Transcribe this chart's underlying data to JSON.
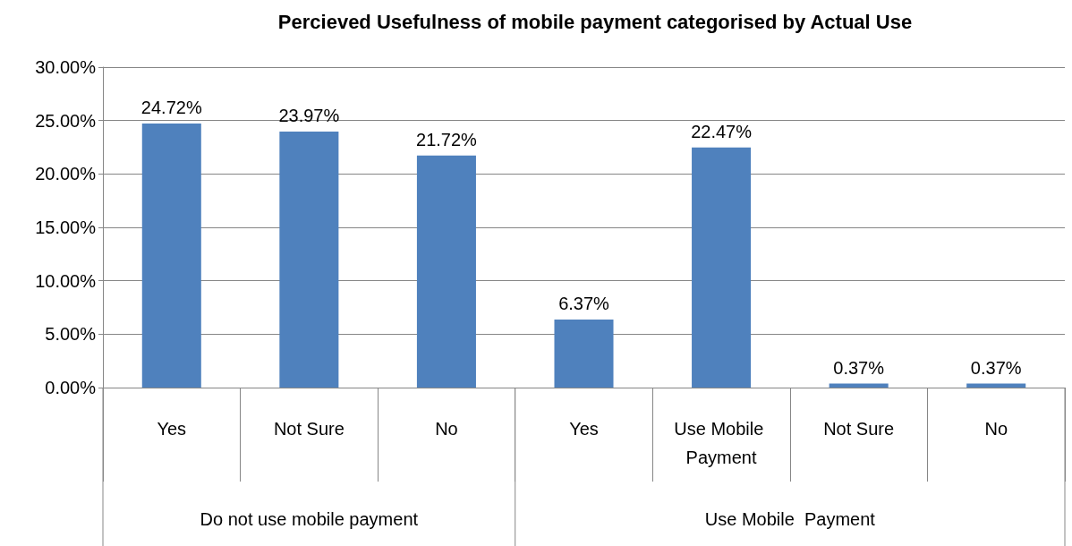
{
  "chart_data": {
    "type": "bar",
    "title": "Percieved Usefulness of mobile payment categorised by Actual Use",
    "categories": [
      "Yes",
      "Not Sure",
      "No",
      "Yes",
      "Use Mobile Payment",
      "Not Sure",
      "No"
    ],
    "values": [
      24.72,
      23.97,
      21.72,
      6.37,
      22.47,
      0.37,
      0.37
    ],
    "value_labels": [
      "24.72%",
      "23.97%",
      "21.72%",
      "6.37%",
      "22.47%",
      "0.37%",
      "0.37%"
    ],
    "color": "#4f81bd",
    "ylim": [
      0,
      30
    ],
    "yticks": [
      {
        "value": 0,
        "label": "0.00%"
      },
      {
        "value": 5,
        "label": "5.00%"
      },
      {
        "value": 10,
        "label": "10.00%"
      },
      {
        "value": 15,
        "label": "15.00%"
      },
      {
        "value": 20,
        "label": "20.00%"
      },
      {
        "value": 25,
        "label": "25.00%"
      },
      {
        "value": 30,
        "label": "30.00%"
      }
    ],
    "annotations": [
      "Do not use mobile payment",
      "Use Mobile  Payment"
    ],
    "grid": "y"
  }
}
